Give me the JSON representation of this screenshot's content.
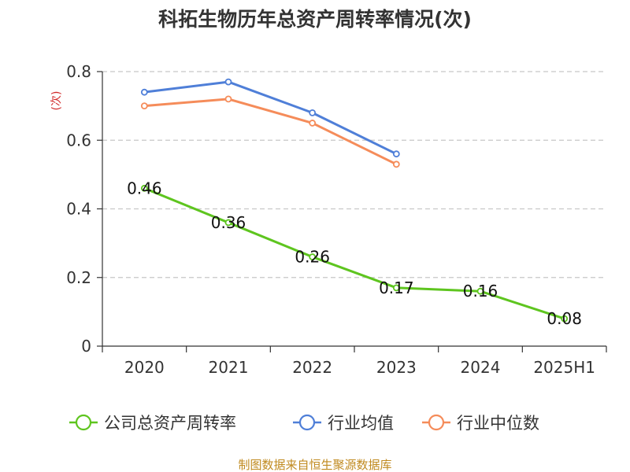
{
  "chart_data": {
    "type": "line",
    "title": "科拓生物历年总资产周转率情况(次)",
    "ylabel": "(次)",
    "xlabel": "",
    "categories": [
      "2020",
      "2021",
      "2022",
      "2023",
      "2024",
      "2025H1"
    ],
    "ylim": [
      0,
      0.8
    ],
    "yticks": [
      "0",
      "0.2",
      "0.4",
      "0.6",
      "0.8"
    ],
    "grid": true,
    "legend_position": "bottom",
    "series": [
      {
        "name": "公司总资产周转率",
        "color": "#5ec51f",
        "values": [
          0.46,
          0.36,
          0.26,
          0.17,
          0.16,
          0.08
        ],
        "labels": [
          "0.46",
          "0.36",
          "0.26",
          "0.17",
          "0.16",
          "0.08"
        ]
      },
      {
        "name": "行业均值",
        "color": "#4f7fd8",
        "values": [
          0.74,
          0.77,
          0.68,
          0.56,
          null,
          null
        ]
      },
      {
        "name": "行业中位数",
        "color": "#f58c5a",
        "values": [
          0.7,
          0.72,
          0.65,
          0.53,
          null,
          null
        ]
      }
    ]
  },
  "source": {
    "text": "制图数据来自恒生聚源数据库",
    "color": "#c08a1f"
  },
  "ylabel_color": "#d12a2a"
}
